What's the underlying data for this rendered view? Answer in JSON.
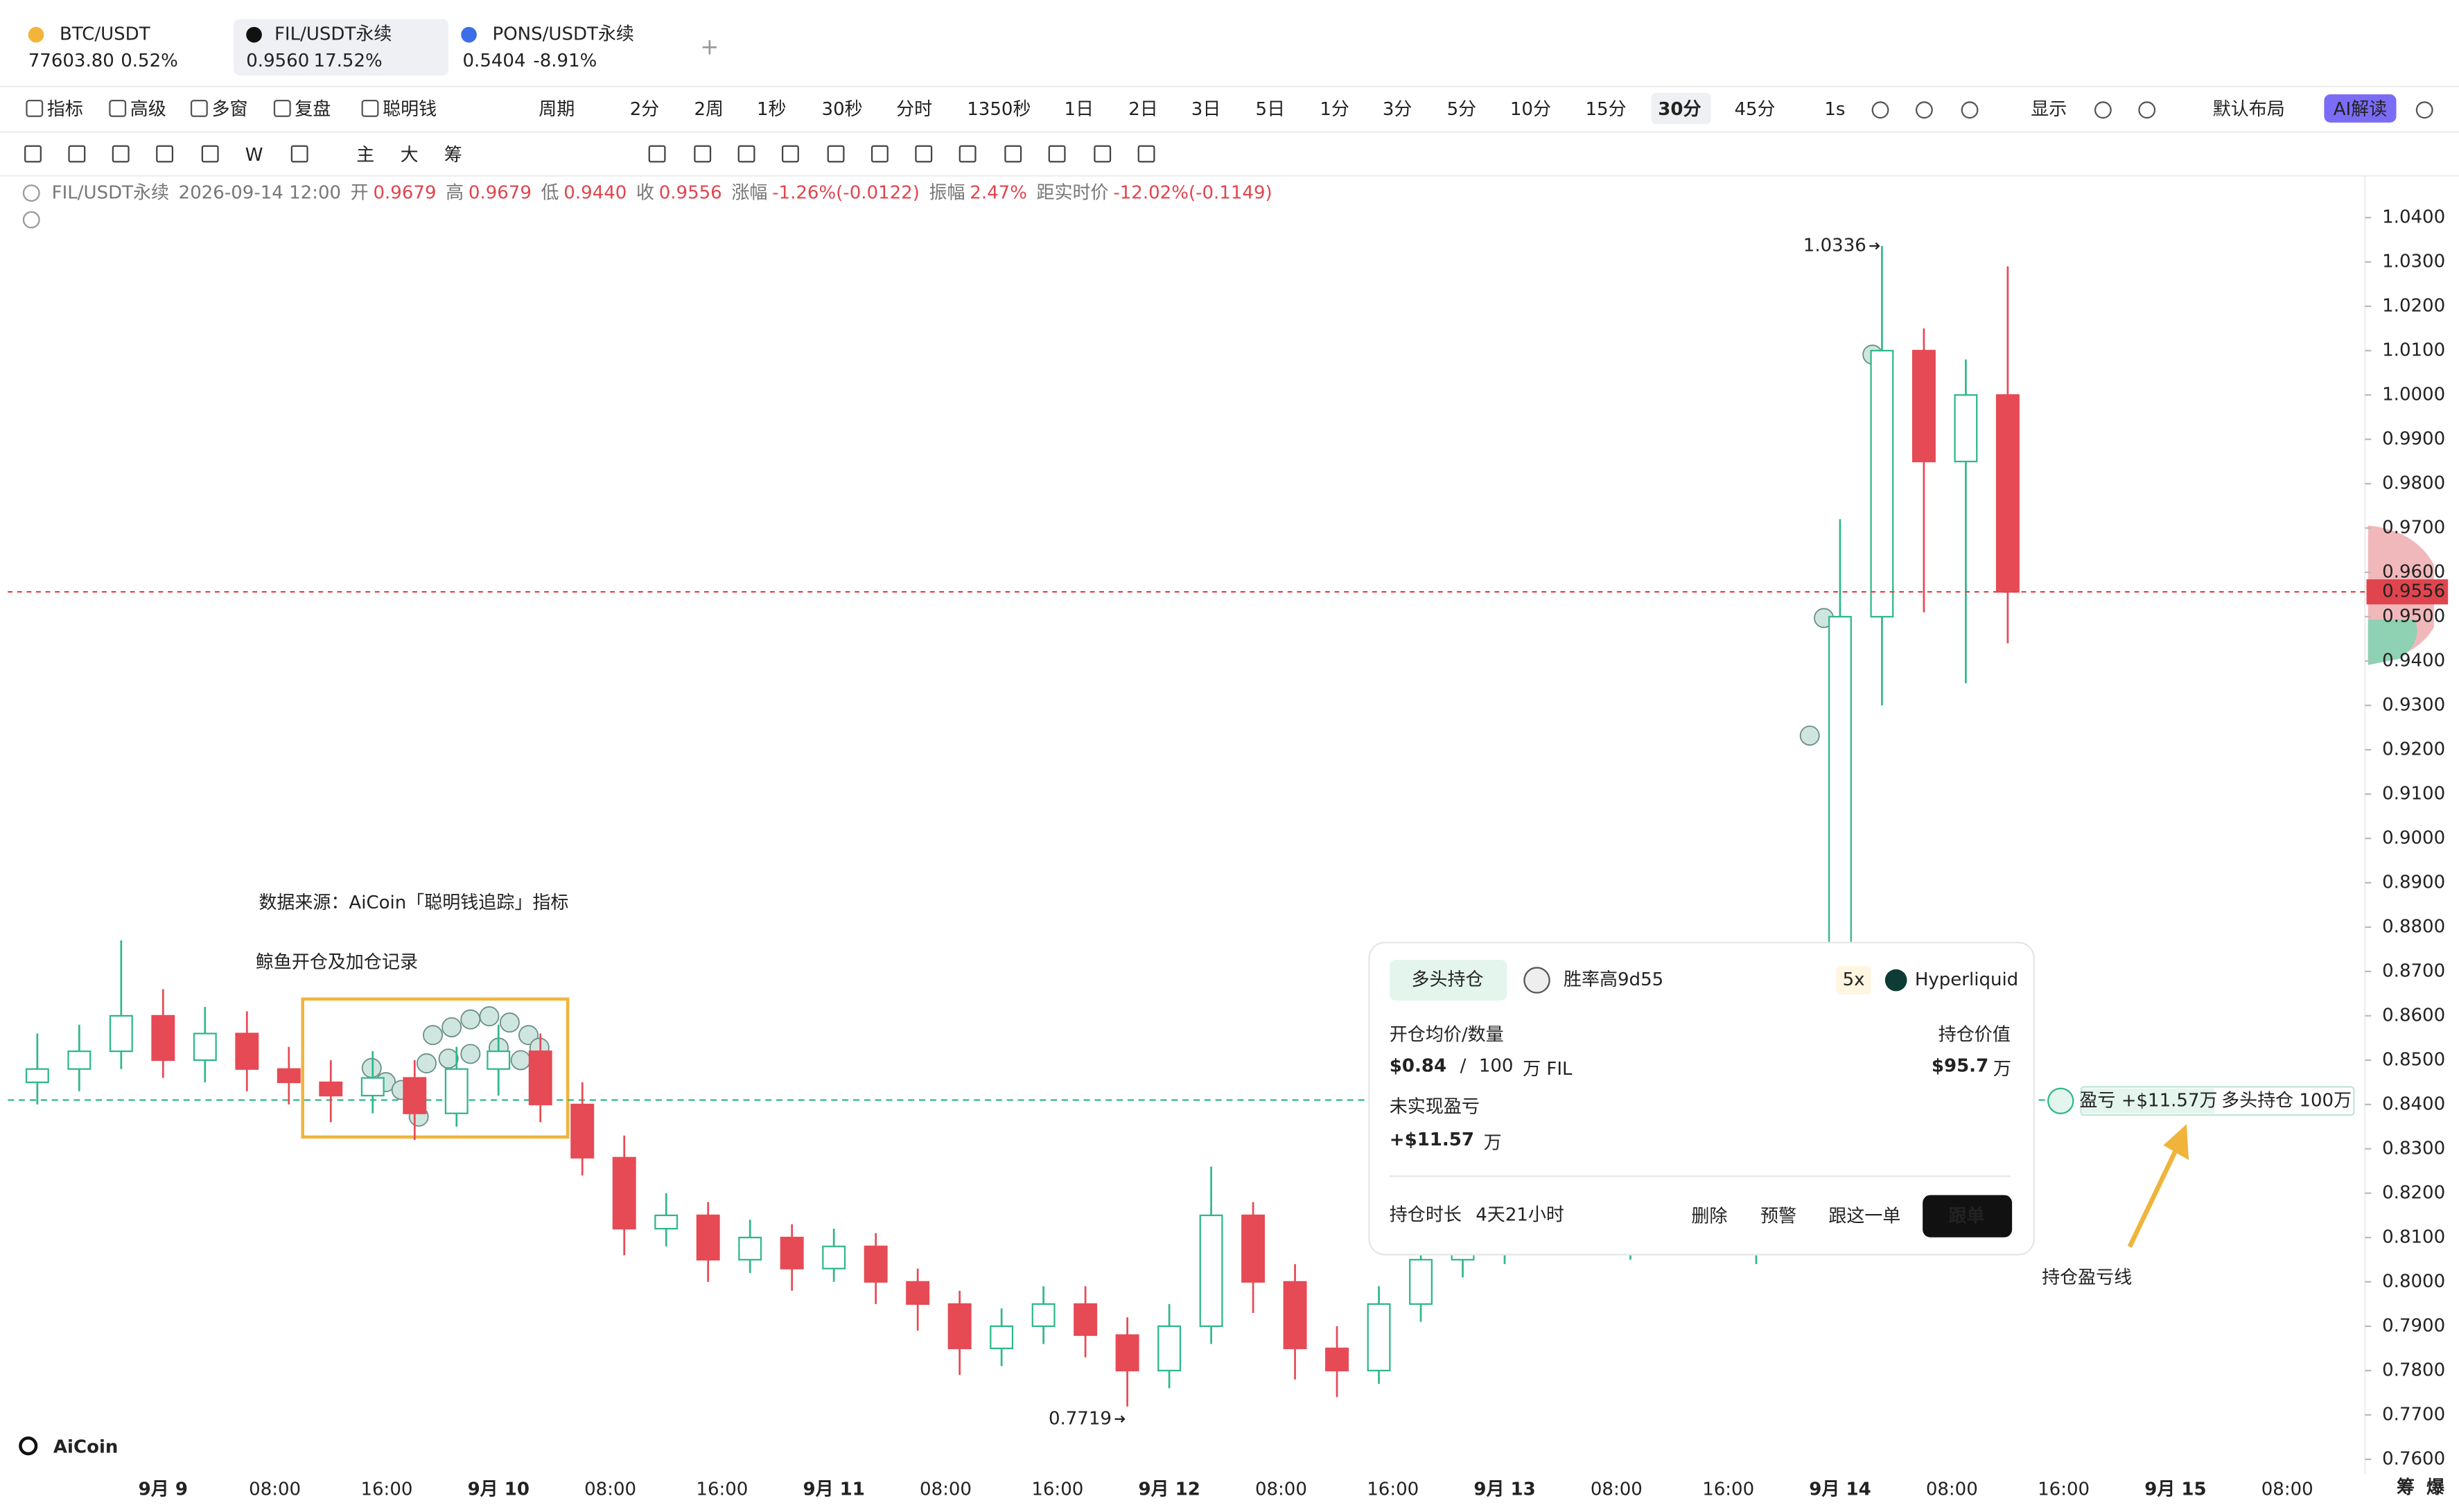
{
  "tabs": [
    {
      "name": "BTC/USDT",
      "price": "77603.80",
      "change": "0.52%"
    },
    {
      "name": "FIL/USDT永续",
      "price": "0.9560",
      "change": "17.52%"
    },
    {
      "name": "PONS/USDT永续",
      "price": "0.5404",
      "change": "-8.91%"
    }
  ],
  "toolbar": {
    "left": [
      "指标",
      "高级",
      "多窗",
      "复盘",
      "聪明钱"
    ],
    "periods": [
      "周期",
      "2分",
      "2周",
      "1秒",
      "30秒",
      "分时",
      "1350秒",
      "1日",
      "2日",
      "3日",
      "5日",
      "1分",
      "3分",
      "5分",
      "10分",
      "15分",
      "30分",
      "45分",
      "1s"
    ],
    "display": "显示",
    "layout": "默认布局",
    "ai": "AI解读"
  },
  "drawing_tools": [
    "W",
    "主",
    "大",
    "筹"
  ],
  "info_bar": [
    {
      "label": "FIL/USDT永续"
    },
    {
      "label": "2026-09-14 12:00"
    },
    {
      "label": "开",
      "value": "0.9679"
    },
    {
      "label": "高",
      "value": "0.9679"
    },
    {
      "label": "低",
      "value": "0.9440"
    },
    {
      "label": "收",
      "value": "0.9556"
    },
    {
      "label": "涨幅",
      "value": "-1.26%(-0.0122)"
    },
    {
      "label": "振幅",
      "value": "2.47%"
    },
    {
      "label": "距实时价",
      "value": "-12.02%(-0.1149)"
    }
  ],
  "chart_data": {
    "type": "candlestick",
    "up_color": "#2eb88a",
    "down_color": "#e64a55",
    "x_labels": [
      "9月 9",
      "08:00",
      "16:00",
      "9月 10",
      "08:00",
      "16:00",
      "9月 11",
      "08:00",
      "16:00",
      "9月 12",
      "08:00",
      "16:00",
      "9月 13",
      "08:00",
      "16:00",
      "9月 14",
      "08:00",
      "16:00",
      "9月 15",
      "08:00"
    ],
    "open": [
      0.845,
      0.848,
      0.852,
      0.86,
      0.85,
      0.856,
      0.848,
      0.845,
      0.842,
      0.846,
      0.838,
      0.848,
      0.852,
      0.84,
      0.828,
      0.812,
      0.815,
      0.805,
      0.81,
      0.803,
      0.808,
      0.8,
      0.795,
      0.785,
      0.79,
      0.795,
      0.788,
      0.78,
      0.79,
      0.815,
      0.8,
      0.785,
      0.78,
      0.795,
      0.805,
      0.808,
      0.812,
      0.815,
      0.81,
      0.812,
      0.818,
      0.81,
      0.812,
      0.85,
      0.95,
      1.01,
      0.985,
      1.0
    ],
    "high": [
      0.856,
      0.858,
      0.877,
      0.866,
      0.862,
      0.861,
      0.853,
      0.85,
      0.852,
      0.85,
      0.853,
      0.858,
      0.856,
      0.845,
      0.833,
      0.82,
      0.818,
      0.814,
      0.813,
      0.812,
      0.811,
      0.803,
      0.798,
      0.794,
      0.799,
      0.799,
      0.792,
      0.795,
      0.826,
      0.818,
      0.804,
      0.79,
      0.799,
      0.809,
      0.812,
      0.816,
      0.819,
      0.818,
      0.816,
      0.822,
      0.821,
      0.816,
      0.855,
      0.972,
      1.0336,
      1.015,
      1.008,
      1.029
    ],
    "low": [
      0.84,
      0.843,
      0.848,
      0.846,
      0.845,
      0.843,
      0.84,
      0.836,
      0.838,
      0.832,
      0.835,
      0.842,
      0.836,
      0.824,
      0.806,
      0.808,
      0.8,
      0.802,
      0.798,
      0.8,
      0.795,
      0.789,
      0.779,
      0.781,
      0.786,
      0.783,
      0.7719,
      0.776,
      0.786,
      0.793,
      0.778,
      0.774,
      0.777,
      0.791,
      0.801,
      0.804,
      0.808,
      0.806,
      0.805,
      0.808,
      0.806,
      0.804,
      0.808,
      0.845,
      0.93,
      0.951,
      0.935,
      0.944
    ],
    "close": [
      0.848,
      0.852,
      0.86,
      0.85,
      0.856,
      0.848,
      0.845,
      0.842,
      0.846,
      0.838,
      0.848,
      0.852,
      0.84,
      0.828,
      0.812,
      0.815,
      0.805,
      0.81,
      0.803,
      0.808,
      0.8,
      0.795,
      0.785,
      0.79,
      0.795,
      0.788,
      0.78,
      0.79,
      0.815,
      0.8,
      0.785,
      0.78,
      0.795,
      0.805,
      0.808,
      0.812,
      0.815,
      0.81,
      0.812,
      0.818,
      0.81,
      0.812,
      0.85,
      0.95,
      1.01,
      0.985,
      1.0,
      0.9556
    ],
    "position_line": 0.841,
    "ylim": [
      0.757,
      1.048
    ],
    "yticks": [
      {
        "value": 1.04,
        "label": "1.0400"
      },
      {
        "value": 1.03,
        "label": "1.0300"
      },
      {
        "value": 1.02,
        "label": "1.0200"
      },
      {
        "value": 1.01,
        "label": "1.0100"
      },
      {
        "value": 1.0,
        "label": "1.0000"
      },
      {
        "value": 0.99,
        "label": "0.9900"
      },
      {
        "value": 0.98,
        "label": "0.9800"
      },
      {
        "value": 0.97,
        "label": "0.9700"
      },
      {
        "value": 0.96,
        "label": "0.9600"
      },
      {
        "value": 0.95,
        "label": "0.9500"
      },
      {
        "value": 0.94,
        "label": "0.9400"
      },
      {
        "value": 0.93,
        "label": "0.9300"
      },
      {
        "value": 0.92,
        "label": "0.9200"
      },
      {
        "value": 0.91,
        "label": "0.9100"
      },
      {
        "value": 0.9,
        "label": "0.9000"
      },
      {
        "value": 0.89,
        "label": "0.8900"
      },
      {
        "value": 0.88,
        "label": "0.8800"
      },
      {
        "value": 0.87,
        "label": "0.8700"
      },
      {
        "value": 0.86,
        "label": "0.8600"
      },
      {
        "value": 0.85,
        "label": "0.8500"
      },
      {
        "value": 0.84,
        "label": "0.8400"
      },
      {
        "value": 0.83,
        "label": "0.8300"
      },
      {
        "value": 0.82,
        "label": "0.8200"
      },
      {
        "value": 0.81,
        "label": "0.8100"
      },
      {
        "value": 0.8,
        "label": "0.8000"
      },
      {
        "value": 0.79,
        "label": "0.7900"
      },
      {
        "value": 0.78,
        "label": "0.7800"
      },
      {
        "value": 0.77,
        "label": "0.7700"
      },
      {
        "value": 0.76,
        "label": "0.7600"
      }
    ],
    "grid": false
  },
  "annotations": {
    "source": "数据来源：AiCoin「聪明钱追踪」指标",
    "whale": "鲸鱼开仓及加仓记录",
    "pnl_line": "持仓盈亏线"
  },
  "position_card": {
    "side": "多头持仓",
    "trader": "胜率高9d55",
    "leverage": "5x",
    "exchange": "Hyperliquid",
    "entry_label": "开仓均价/数量",
    "entry_price": "$0.84",
    "separator": "/",
    "amount": "100",
    "amount_unit": "万 FIL",
    "value_label": "持仓价值",
    "value": "$95.7",
    "value_unit": "万",
    "pnl_label": "未实现盈亏",
    "pnl": "+$11.57",
    "pnl_unit": "万",
    "duration_label": "持仓时长",
    "duration": "4天21小时",
    "actions": [
      "删除",
      "预警",
      "跟这一单"
    ],
    "follow": "跟单"
  },
  "pnl_tag": {
    "pnl": "盈亏 +$11.57万",
    "position": "多头持仓 100万"
  },
  "corner": [
    "筹",
    "爆"
  ],
  "logo": "AiCoin"
}
